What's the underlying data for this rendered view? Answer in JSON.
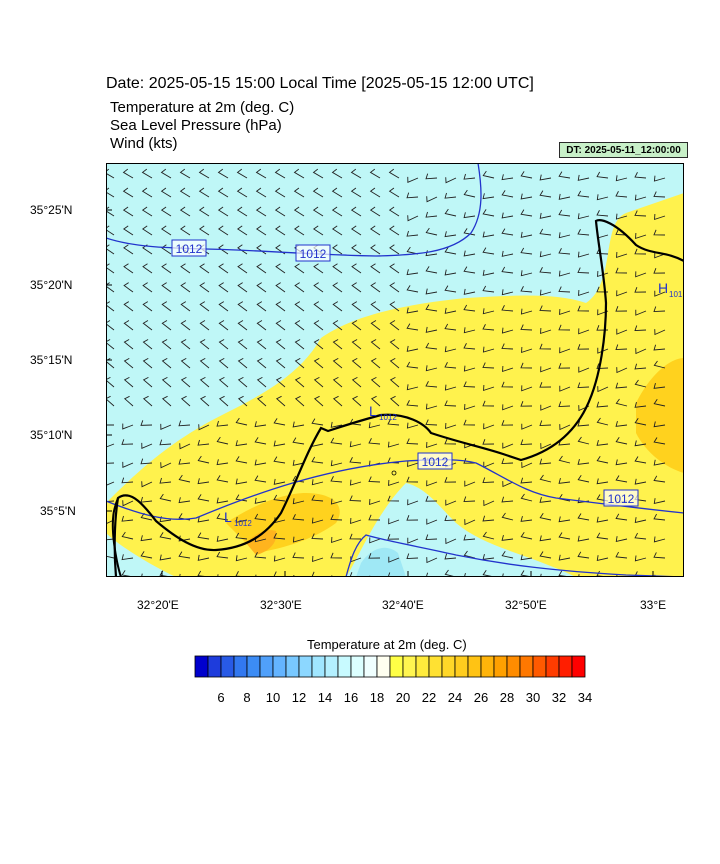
{
  "header": {
    "title": "Date: 2025-05-15  15:00 Local Time [2025-05-15  12:00 UTC]",
    "fields": [
      "Temperature at 2m   (deg. C)",
      "Sea Level Pressure   (hPa)",
      "Wind   (kts)"
    ],
    "dt_badge": "DT: 2025-05-11_12:00:00"
  },
  "map": {
    "lat_labels": [
      "35°25'N",
      "35°20'N",
      "35°15'N",
      "35°10'N",
      "35°5'N"
    ],
    "lon_labels": [
      "32°20'E",
      "32°30'E",
      "32°40'E",
      "32°50'E",
      "33°E"
    ],
    "isobar_labels": [
      "1012",
      "1012",
      "1012",
      "1012"
    ],
    "pressure_centers": [
      {
        "symbol": "L",
        "value": "1012"
      },
      {
        "symbol": "L",
        "value": "1012"
      },
      {
        "symbol": "H",
        "value": "101"
      }
    ],
    "colors": {
      "sea_cyan": "#bff7f7",
      "warm_yellow": "#fff24d",
      "gold": "#ffd21e",
      "orange": "#ffb41e",
      "isobar": "#2233cc",
      "coast": "#000000"
    }
  },
  "colorbar": {
    "title": "Temperature at 2m  (deg. C)",
    "labels": [
      "6",
      "8",
      "10",
      "12",
      "14",
      "16",
      "18",
      "20",
      "22",
      "24",
      "26",
      "28",
      "30",
      "32",
      "34"
    ],
    "colors": [
      "#0000cd",
      "#1e3cdc",
      "#285ae6",
      "#3278f0",
      "#3c8cf5",
      "#50a0fa",
      "#64b4ff",
      "#78c8ff",
      "#8cd7ff",
      "#a0e6ff",
      "#b4f0ff",
      "#c8faff",
      "#dcffff",
      "#f0ffff",
      "#fffff0",
      "#ffff46",
      "#fff550",
      "#ffeb3c",
      "#ffe132",
      "#ffd728",
      "#ffcd1e",
      "#ffc314",
      "#ffb40a",
      "#ffa000",
      "#ff8c00",
      "#ff7800",
      "#ff5a00",
      "#ff3c00",
      "#ff1e00",
      "#ff0000"
    ]
  }
}
